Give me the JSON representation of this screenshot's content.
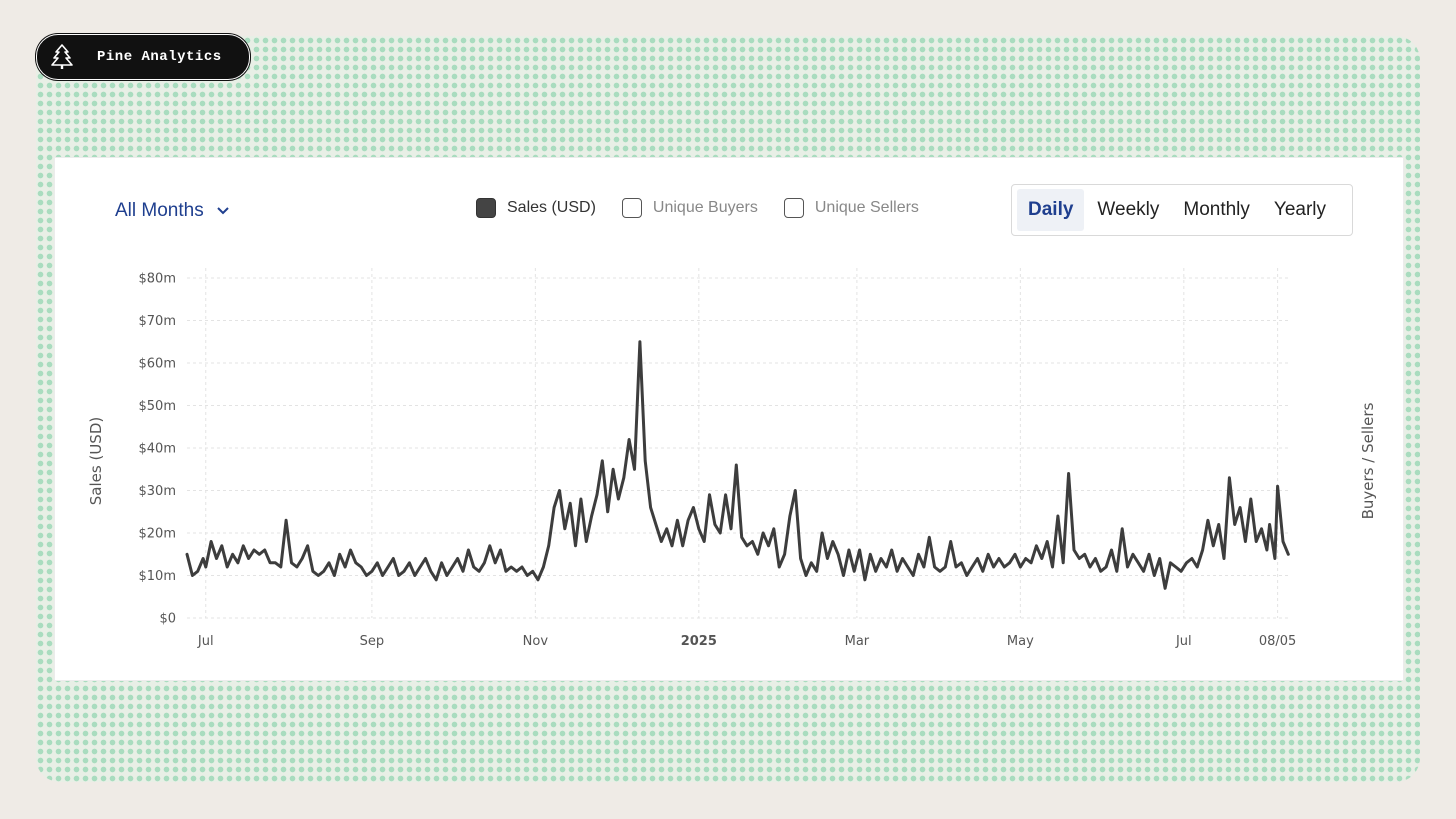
{
  "brand": {
    "name": "Pine Analytics",
    "logo_icon": "pine-tree-icon"
  },
  "controls": {
    "period_label": "All Months",
    "legend": [
      {
        "label": "Sales (USD)",
        "checked": true
      },
      {
        "label": "Unique Buyers",
        "checked": false
      },
      {
        "label": "Unique Sellers",
        "checked": false
      }
    ],
    "granularity": [
      {
        "label": "Daily",
        "active": true
      },
      {
        "label": "Weekly",
        "active": false
      },
      {
        "label": "Monthly",
        "active": false
      },
      {
        "label": "Yearly",
        "active": false
      }
    ]
  },
  "colors": {
    "line": "#3d3d3d",
    "accent": "#1f3f8f",
    "badge": "#111111"
  },
  "chart_data": {
    "type": "line",
    "x_start": "2024-06-24",
    "x_end": "2025-08-10",
    "ylabel": "Sales (USD)",
    "y2label": "Buyers / Sellers",
    "ylim": [
      0,
      80
    ],
    "yticks": [
      "$0",
      "$10m",
      "$20m",
      "$30m",
      "$40m",
      "$50m",
      "$60m",
      "$70m",
      "$80m"
    ],
    "xticks": [
      {
        "label": "Jul",
        "date": "2024-07-01",
        "bold": false
      },
      {
        "label": "Sep",
        "date": "2024-09-01",
        "bold": false
      },
      {
        "label": "Nov",
        "date": "2024-11-01",
        "bold": false
      },
      {
        "label": "2025",
        "date": "2025-01-01",
        "bold": true
      },
      {
        "label": "Mar",
        "date": "2025-03-01",
        "bold": false
      },
      {
        "label": "May",
        "date": "2025-05-01",
        "bold": false
      },
      {
        "label": "Jul",
        "date": "2025-07-01",
        "bold": false
      },
      {
        "label": "08/05",
        "date": "2025-08-05",
        "bold": false
      }
    ],
    "grid": true,
    "series": [
      {
        "name": "Sales (USD)",
        "points": [
          [
            "2024-06-24",
            15
          ],
          [
            "2024-06-26",
            10
          ],
          [
            "2024-06-28",
            11
          ],
          [
            "2024-06-30",
            14
          ],
          [
            "2024-07-01",
            12
          ],
          [
            "2024-07-03",
            18
          ],
          [
            "2024-07-05",
            14
          ],
          [
            "2024-07-07",
            17
          ],
          [
            "2024-07-09",
            12
          ],
          [
            "2024-07-11",
            15
          ],
          [
            "2024-07-13",
            13
          ],
          [
            "2024-07-15",
            17
          ],
          [
            "2024-07-17",
            14
          ],
          [
            "2024-07-19",
            16
          ],
          [
            "2024-07-21",
            15
          ],
          [
            "2024-07-23",
            16
          ],
          [
            "2024-07-25",
            13
          ],
          [
            "2024-07-27",
            13
          ],
          [
            "2024-07-29",
            12
          ],
          [
            "2024-07-31",
            23
          ],
          [
            "2024-08-02",
            13
          ],
          [
            "2024-08-04",
            12
          ],
          [
            "2024-08-06",
            14
          ],
          [
            "2024-08-08",
            17
          ],
          [
            "2024-08-10",
            11
          ],
          [
            "2024-08-12",
            10
          ],
          [
            "2024-08-14",
            11
          ],
          [
            "2024-08-16",
            13
          ],
          [
            "2024-08-18",
            10
          ],
          [
            "2024-08-20",
            15
          ],
          [
            "2024-08-22",
            12
          ],
          [
            "2024-08-24",
            16
          ],
          [
            "2024-08-26",
            13
          ],
          [
            "2024-08-28",
            12
          ],
          [
            "2024-08-30",
            10
          ],
          [
            "2024-09-01",
            11
          ],
          [
            "2024-09-03",
            13
          ],
          [
            "2024-09-05",
            10
          ],
          [
            "2024-09-07",
            12
          ],
          [
            "2024-09-09",
            14
          ],
          [
            "2024-09-11",
            10
          ],
          [
            "2024-09-13",
            11
          ],
          [
            "2024-09-15",
            13
          ],
          [
            "2024-09-17",
            10
          ],
          [
            "2024-09-19",
            12
          ],
          [
            "2024-09-21",
            14
          ],
          [
            "2024-09-23",
            11
          ],
          [
            "2024-09-25",
            9
          ],
          [
            "2024-09-27",
            13
          ],
          [
            "2024-09-29",
            10
          ],
          [
            "2024-10-01",
            12
          ],
          [
            "2024-10-03",
            14
          ],
          [
            "2024-10-05",
            11
          ],
          [
            "2024-10-07",
            16
          ],
          [
            "2024-10-09",
            12
          ],
          [
            "2024-10-11",
            11
          ],
          [
            "2024-10-13",
            13
          ],
          [
            "2024-10-15",
            17
          ],
          [
            "2024-10-17",
            13
          ],
          [
            "2024-10-19",
            16
          ],
          [
            "2024-10-21",
            11
          ],
          [
            "2024-10-23",
            12
          ],
          [
            "2024-10-25",
            11
          ],
          [
            "2024-10-27",
            12
          ],
          [
            "2024-10-29",
            10
          ],
          [
            "2024-10-31",
            11
          ],
          [
            "2024-11-02",
            9
          ],
          [
            "2024-11-04",
            12
          ],
          [
            "2024-11-06",
            17
          ],
          [
            "2024-11-08",
            26
          ],
          [
            "2024-11-10",
            30
          ],
          [
            "2024-11-12",
            21
          ],
          [
            "2024-11-14",
            27
          ],
          [
            "2024-11-16",
            17
          ],
          [
            "2024-11-18",
            28
          ],
          [
            "2024-11-20",
            18
          ],
          [
            "2024-11-22",
            24
          ],
          [
            "2024-11-24",
            29
          ],
          [
            "2024-11-26",
            37
          ],
          [
            "2024-11-28",
            25
          ],
          [
            "2024-11-30",
            35
          ],
          [
            "2024-12-02",
            28
          ],
          [
            "2024-12-04",
            33
          ],
          [
            "2024-12-06",
            42
          ],
          [
            "2024-12-08",
            35
          ],
          [
            "2024-12-10",
            65
          ],
          [
            "2024-12-12",
            37
          ],
          [
            "2024-12-14",
            26
          ],
          [
            "2024-12-16",
            22
          ],
          [
            "2024-12-18",
            18
          ],
          [
            "2024-12-20",
            21
          ],
          [
            "2024-12-22",
            17
          ],
          [
            "2024-12-24",
            23
          ],
          [
            "2024-12-26",
            17
          ],
          [
            "2024-12-28",
            23
          ],
          [
            "2024-12-30",
            26
          ],
          [
            "2025-01-01",
            21
          ],
          [
            "2025-01-03",
            18
          ],
          [
            "2025-01-05",
            29
          ],
          [
            "2025-01-07",
            22
          ],
          [
            "2025-01-09",
            20
          ],
          [
            "2025-01-11",
            29
          ],
          [
            "2025-01-13",
            21
          ],
          [
            "2025-01-15",
            36
          ],
          [
            "2025-01-17",
            19
          ],
          [
            "2025-01-19",
            17
          ],
          [
            "2025-01-21",
            18
          ],
          [
            "2025-01-23",
            15
          ],
          [
            "2025-01-25",
            20
          ],
          [
            "2025-01-27",
            17
          ],
          [
            "2025-01-29",
            21
          ],
          [
            "2025-01-31",
            12
          ],
          [
            "2025-02-02",
            15
          ],
          [
            "2025-02-04",
            24
          ],
          [
            "2025-02-06",
            30
          ],
          [
            "2025-02-08",
            14
          ],
          [
            "2025-02-10",
            10
          ],
          [
            "2025-02-12",
            13
          ],
          [
            "2025-02-14",
            11
          ],
          [
            "2025-02-16",
            20
          ],
          [
            "2025-02-18",
            14
          ],
          [
            "2025-02-20",
            18
          ],
          [
            "2025-02-22",
            15
          ],
          [
            "2025-02-24",
            10
          ],
          [
            "2025-02-26",
            16
          ],
          [
            "2025-02-28",
            11
          ],
          [
            "2025-03-02",
            16
          ],
          [
            "2025-03-04",
            9
          ],
          [
            "2025-03-06",
            15
          ],
          [
            "2025-03-08",
            11
          ],
          [
            "2025-03-10",
            14
          ],
          [
            "2025-03-12",
            12
          ],
          [
            "2025-03-14",
            16
          ],
          [
            "2025-03-16",
            11
          ],
          [
            "2025-03-18",
            14
          ],
          [
            "2025-03-20",
            12
          ],
          [
            "2025-03-22",
            10
          ],
          [
            "2025-03-24",
            15
          ],
          [
            "2025-03-26",
            12
          ],
          [
            "2025-03-28",
            19
          ],
          [
            "2025-03-30",
            12
          ],
          [
            "2025-04-01",
            11
          ],
          [
            "2025-04-03",
            12
          ],
          [
            "2025-04-05",
            18
          ],
          [
            "2025-04-07",
            12
          ],
          [
            "2025-04-09",
            13
          ],
          [
            "2025-04-11",
            10
          ],
          [
            "2025-04-13",
            12
          ],
          [
            "2025-04-15",
            14
          ],
          [
            "2025-04-17",
            11
          ],
          [
            "2025-04-19",
            15
          ],
          [
            "2025-04-21",
            12
          ],
          [
            "2025-04-23",
            14
          ],
          [
            "2025-04-25",
            12
          ],
          [
            "2025-04-27",
            13
          ],
          [
            "2025-04-29",
            15
          ],
          [
            "2025-05-01",
            12
          ],
          [
            "2025-05-03",
            14
          ],
          [
            "2025-05-05",
            13
          ],
          [
            "2025-05-07",
            17
          ],
          [
            "2025-05-09",
            14
          ],
          [
            "2025-05-11",
            18
          ],
          [
            "2025-05-13",
            12
          ],
          [
            "2025-05-15",
            24
          ],
          [
            "2025-05-17",
            13
          ],
          [
            "2025-05-19",
            34
          ],
          [
            "2025-05-21",
            16
          ],
          [
            "2025-05-23",
            14
          ],
          [
            "2025-05-25",
            15
          ],
          [
            "2025-05-27",
            12
          ],
          [
            "2025-05-29",
            14
          ],
          [
            "2025-05-31",
            11
          ],
          [
            "2025-06-02",
            12
          ],
          [
            "2025-06-04",
            16
          ],
          [
            "2025-06-06",
            11
          ],
          [
            "2025-06-08",
            21
          ],
          [
            "2025-06-10",
            12
          ],
          [
            "2025-06-12",
            15
          ],
          [
            "2025-06-14",
            13
          ],
          [
            "2025-06-16",
            11
          ],
          [
            "2025-06-18",
            15
          ],
          [
            "2025-06-20",
            10
          ],
          [
            "2025-06-22",
            14
          ],
          [
            "2025-06-24",
            7
          ],
          [
            "2025-06-26",
            13
          ],
          [
            "2025-06-28",
            12
          ],
          [
            "2025-06-30",
            11
          ],
          [
            "2025-07-02",
            13
          ],
          [
            "2025-07-04",
            14
          ],
          [
            "2025-07-06",
            12
          ],
          [
            "2025-07-08",
            16
          ],
          [
            "2025-07-10",
            23
          ],
          [
            "2025-07-12",
            17
          ],
          [
            "2025-07-14",
            22
          ],
          [
            "2025-07-16",
            14
          ],
          [
            "2025-07-18",
            33
          ],
          [
            "2025-07-20",
            22
          ],
          [
            "2025-07-22",
            26
          ],
          [
            "2025-07-24",
            18
          ],
          [
            "2025-07-26",
            28
          ],
          [
            "2025-07-28",
            18
          ],
          [
            "2025-07-30",
            21
          ],
          [
            "2025-08-01",
            16
          ],
          [
            "2025-08-02",
            22
          ],
          [
            "2025-08-04",
            14
          ],
          [
            "2025-08-05",
            31
          ],
          [
            "2025-08-07",
            18
          ],
          [
            "2025-08-09",
            15
          ]
        ]
      }
    ]
  }
}
